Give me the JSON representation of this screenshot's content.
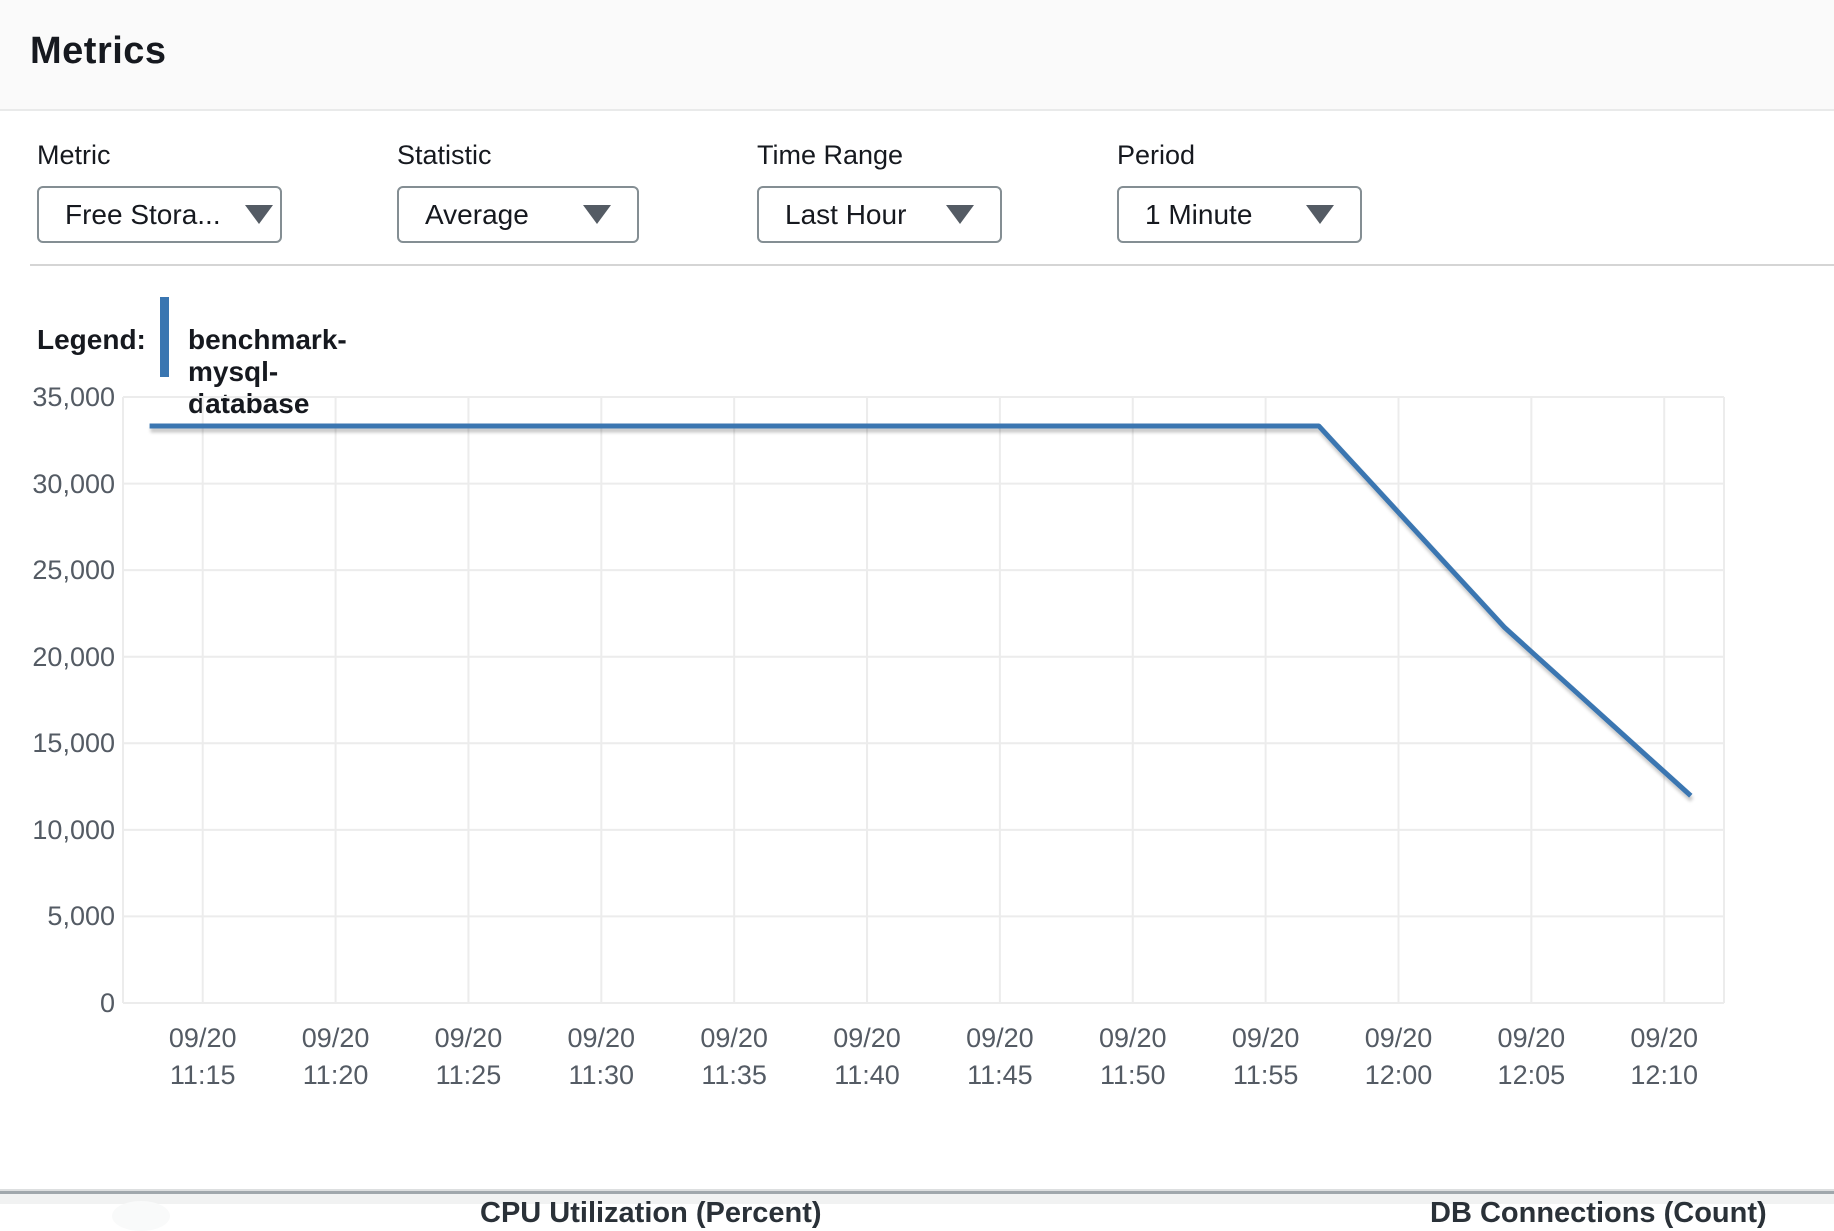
{
  "header": {
    "title": "Metrics"
  },
  "controls": {
    "metric": {
      "label": "Metric",
      "value": "Free Stora..."
    },
    "statistic": {
      "label": "Statistic",
      "value": "Average"
    },
    "time_range": {
      "label": "Time Range",
      "value": "Last Hour"
    },
    "period": {
      "label": "Period",
      "value": "1 Minute"
    }
  },
  "legend": {
    "label": "Legend:",
    "series_name": "benchmark-mysql-database"
  },
  "colors": {
    "series_blue": "#3a76b1",
    "grid": "#ececec",
    "axis_text": "#545b64"
  },
  "chart_data": {
    "type": "line",
    "title": "",
    "xlabel": "",
    "ylabel": "",
    "grid": true,
    "legend_position": "top-left",
    "ylim": [
      0,
      35000
    ],
    "y_ticks": [
      {
        "value": 35000,
        "label": "35,000"
      },
      {
        "value": 30000,
        "label": "30,000"
      },
      {
        "value": 25000,
        "label": "25,000"
      },
      {
        "value": 20000,
        "label": "20,000"
      },
      {
        "value": 15000,
        "label": "15,000"
      },
      {
        "value": 10000,
        "label": "10,000"
      },
      {
        "value": 5000,
        "label": "5,000"
      },
      {
        "value": 0,
        "label": "0"
      }
    ],
    "x_axis": {
      "start_reference": "09/20 11:12",
      "minutes_span": 60.25,
      "ticks": [
        {
          "minute": 3,
          "date": "09/20",
          "time": "11:15"
        },
        {
          "minute": 8,
          "date": "09/20",
          "time": "11:20"
        },
        {
          "minute": 13,
          "date": "09/20",
          "time": "11:25"
        },
        {
          "minute": 18,
          "date": "09/20",
          "time": "11:30"
        },
        {
          "minute": 23,
          "date": "09/20",
          "time": "11:35"
        },
        {
          "minute": 28,
          "date": "09/20",
          "time": "11:40"
        },
        {
          "minute": 33,
          "date": "09/20",
          "time": "11:45"
        },
        {
          "minute": 38,
          "date": "09/20",
          "time": "11:50"
        },
        {
          "minute": 43,
          "date": "09/20",
          "time": "11:55"
        },
        {
          "minute": 48,
          "date": "09/20",
          "time": "12:00"
        },
        {
          "minute": 53,
          "date": "09/20",
          "time": "12:05"
        },
        {
          "minute": 58,
          "date": "09/20",
          "time": "12:10"
        }
      ]
    },
    "series": [
      {
        "name": "benchmark-mysql-database",
        "color": "#3a76b1",
        "minutes": [
          1,
          2,
          3,
          4,
          5,
          6,
          7,
          8,
          9,
          10,
          11,
          12,
          13,
          14,
          15,
          16,
          17,
          18,
          19,
          20,
          21,
          22,
          23,
          24,
          25,
          26,
          27,
          28,
          29,
          30,
          31,
          32,
          33,
          34,
          35,
          36,
          37,
          38,
          39,
          40,
          41,
          42,
          43,
          44,
          45,
          46,
          47,
          48,
          49,
          50,
          51,
          52,
          53,
          54,
          55,
          56,
          57,
          58,
          59
        ],
        "values": [
          33326,
          33326,
          33326,
          33326,
          33326,
          33326,
          33326,
          33326,
          33326,
          33326,
          33326,
          33326,
          33326,
          33326,
          33326,
          33326,
          33326,
          33326,
          33326,
          33326,
          33326,
          33326,
          33326,
          33326,
          33326,
          33326,
          33326,
          33326,
          33326,
          33326,
          33326,
          33326,
          33326,
          33326,
          33326,
          33326,
          33326,
          33326,
          33326,
          33326,
          33326,
          33326,
          33326,
          33326,
          33326,
          31662,
          29998,
          28334,
          26670,
          25006,
          23342,
          21678,
          20291,
          18904,
          17517,
          16130,
          14743,
          13356,
          11969
        ]
      }
    ]
  },
  "next_row": {
    "cpu_title": "CPU Utilization (Percent)",
    "db_title": "DB Connections (Count)"
  }
}
